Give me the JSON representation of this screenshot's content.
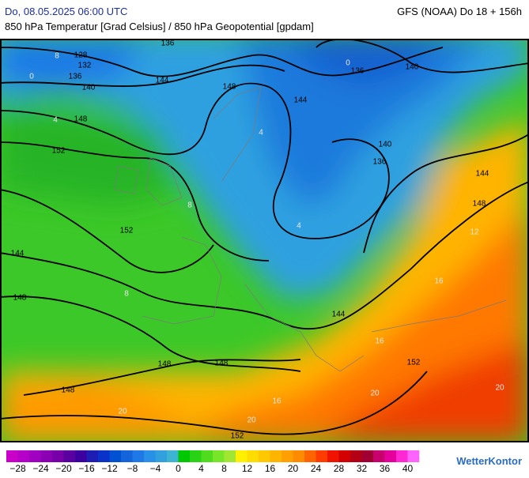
{
  "header": {
    "left": "Do, 08.05.2025 06:00 UTC",
    "right": "GFS (NOAA) Do 18 + 156h",
    "subtitle": "850 hPa Temperatur [Grad Celsius] / 850 hPa Geopotential [gpdam]"
  },
  "map": {
    "contour_labels": [
      "128",
      "132",
      "136",
      "140",
      "136",
      "144",
      "148",
      "148",
      "152",
      "152",
      "144",
      "148",
      "148",
      "148",
      "148",
      "152",
      "144",
      "136",
      "140",
      "140",
      "136",
      "144",
      "148",
      "144",
      "152"
    ],
    "temperature_labels": [
      "8",
      "0",
      "4",
      "8",
      "4",
      "0",
      "4",
      "8",
      "12",
      "16",
      "20",
      "16",
      "20",
      "20",
      "16",
      "20"
    ]
  },
  "scale": {
    "labels": [
      "−28",
      "−24",
      "−20",
      "−16",
      "−12",
      "−8",
      "−4",
      "0",
      "4",
      "8",
      "12",
      "16",
      "20",
      "24",
      "28",
      "32",
      "36",
      "40"
    ],
    "colors": [
      "#c800c8",
      "#b400c8",
      "#a000c0",
      "#8c00b4",
      "#7800a8",
      "#5a00a0",
      "#3c00a0",
      "#1e1eb4",
      "#0a32c8",
      "#0050d2",
      "#1464dc",
      "#1e78e6",
      "#2890e6",
      "#32a0dc",
      "#3cb4d2",
      "#00c800",
      "#28d214",
      "#50dc1e",
      "#78e628",
      "#a0e632",
      "#fff000",
      "#ffdc00",
      "#ffc800",
      "#ffb400",
      "#ffa000",
      "#ff8c00",
      "#ff6400",
      "#ff3c00",
      "#f01400",
      "#d20000",
      "#b40014",
      "#a00032",
      "#c8006e",
      "#e6009b",
      "#ff28d2",
      "#ff64ff"
    ]
  },
  "brand": "WetterKontor"
}
